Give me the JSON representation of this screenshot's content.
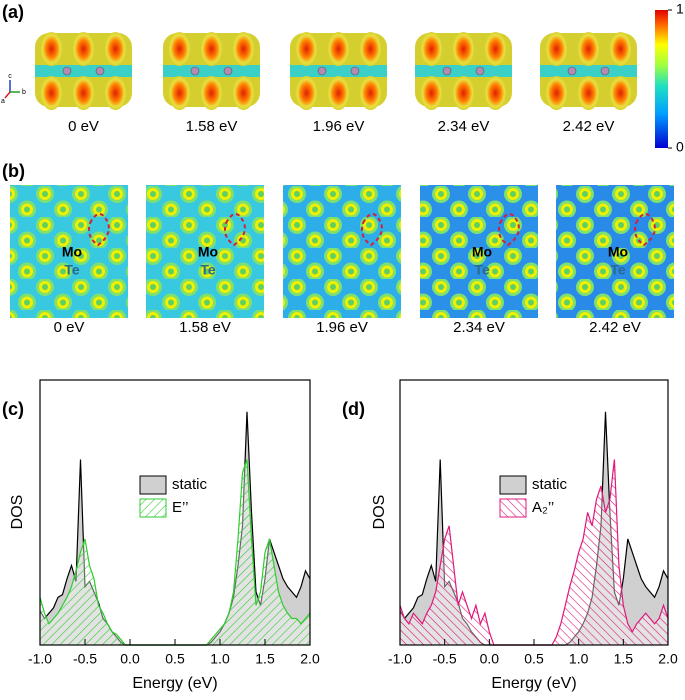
{
  "panel_a": {
    "label": "(a)",
    "captions": [
      "0 eV",
      "1.58 eV",
      "1.96 eV",
      "2.34 eV",
      "2.42 eV"
    ],
    "triad": [
      "c",
      "a",
      "b"
    ],
    "colorbar_ticks": [
      0,
      1
    ]
  },
  "panel_b": {
    "label": "(b)",
    "captions": [
      "0 eV",
      "1.58 eV",
      "1.96 eV",
      "2.34 eV",
      "2.42 eV"
    ],
    "atoms": [
      "Mo",
      "Te"
    ]
  },
  "chart_data": [
    {
      "type": "area",
      "panel_label": "(c)",
      "xlabel": "Energy (eV)",
      "ylabel": "DOS",
      "x": [
        -1,
        -0.95,
        -0.9,
        -0.85,
        -0.8,
        -0.75,
        -0.7,
        -0.65,
        -0.6,
        -0.55,
        -0.5,
        -0.45,
        -0.4,
        -0.35,
        -0.3,
        -0.25,
        -0.2,
        -0.15,
        -0.1,
        -0.05,
        0,
        0.05,
        0.1,
        0.15,
        0.2,
        0.25,
        0.3,
        0.35,
        0.4,
        0.45,
        0.5,
        0.55,
        0.6,
        0.65,
        0.7,
        0.75,
        0.8,
        0.85,
        0.9,
        0.95,
        1,
        1.05,
        1.1,
        1.15,
        1.2,
        1.25,
        1.3,
        1.35,
        1.4,
        1.45,
        1.5,
        1.55,
        1.6,
        1.65,
        1.7,
        1.75,
        1.8,
        1.85,
        1.9,
        1.95,
        2
      ],
      "series": [
        {
          "name": "static",
          "color": "#000000",
          "fill": "#d0d0d0",
          "values": [
            13,
            10,
            12,
            14,
            18,
            19,
            25,
            30,
            24,
            70,
            22,
            24,
            20,
            16,
            10,
            8,
            5,
            3,
            1,
            0,
            0,
            0,
            0,
            0,
            0,
            0,
            0,
            0,
            0,
            0,
            0,
            0,
            0,
            0,
            0,
            0,
            0,
            0,
            1,
            3,
            5,
            8,
            12,
            18,
            30,
            45,
            88,
            50,
            20,
            15,
            25,
            40,
            35,
            30,
            25,
            22,
            20,
            18,
            22,
            28,
            25
          ]
        },
        {
          "name": "E’’",
          "color": "#2fcc2f",
          "pattern": "hatch",
          "values": [
            18,
            12,
            8,
            10,
            12,
            15,
            18,
            22,
            28,
            35,
            40,
            30,
            25,
            15,
            12,
            8,
            5,
            4,
            2,
            0,
            0,
            0,
            0,
            0,
            0,
            0,
            0,
            0,
            0,
            0,
            0,
            0,
            0,
            0,
            0,
            0,
            0,
            0,
            2,
            4,
            6,
            8,
            12,
            20,
            40,
            65,
            70,
            40,
            15,
            20,
            35,
            40,
            30,
            20,
            15,
            12,
            10,
            10,
            8,
            10,
            12
          ]
        }
      ],
      "xlim": [
        -1,
        2
      ],
      "ylim": [
        0,
        100
      ],
      "xticks": [
        {
          "value": -1,
          "label": "-1.0"
        },
        -0.5,
        {
          "value": 0,
          "label": "0.0"
        },
        0.5,
        {
          "value": 1,
          "label": "1.0"
        },
        1.5,
        {
          "value": 2,
          "label": "2.0"
        }
      ]
    },
    {
      "type": "area",
      "panel_label": "(d)",
      "xlabel": "Energy (eV)",
      "ylabel": "DOS",
      "x": [
        -1,
        -0.95,
        -0.9,
        -0.85,
        -0.8,
        -0.75,
        -0.7,
        -0.65,
        -0.6,
        -0.55,
        -0.5,
        -0.45,
        -0.4,
        -0.35,
        -0.3,
        -0.25,
        -0.2,
        -0.15,
        -0.1,
        -0.05,
        0,
        0.05,
        0.1,
        0.15,
        0.2,
        0.25,
        0.3,
        0.35,
        0.4,
        0.45,
        0.5,
        0.55,
        0.6,
        0.65,
        0.7,
        0.75,
        0.8,
        0.85,
        0.9,
        0.95,
        1,
        1.05,
        1.1,
        1.15,
        1.2,
        1.25,
        1.3,
        1.35,
        1.4,
        1.45,
        1.5,
        1.55,
        1.6,
        1.65,
        1.7,
        1.75,
        1.8,
        1.85,
        1.9,
        1.95,
        2
      ],
      "series": [
        {
          "name": "static",
          "color": "#000000",
          "fill": "#d0d0d0",
          "values": [
            13,
            10,
            12,
            14,
            18,
            19,
            25,
            30,
            24,
            70,
            22,
            24,
            20,
            16,
            10,
            8,
            5,
            3,
            1,
            0,
            0,
            0,
            0,
            0,
            0,
            0,
            0,
            0,
            0,
            0,
            0,
            0,
            0,
            0,
            0,
            0,
            0,
            0,
            1,
            3,
            5,
            8,
            12,
            18,
            30,
            45,
            88,
            50,
            20,
            15,
            25,
            40,
            35,
            30,
            25,
            22,
            20,
            18,
            22,
            28,
            25
          ]
        },
        {
          "name": "A₂’’",
          "color": "#e0197c",
          "pattern": "hatch",
          "values": [
            15,
            10,
            8,
            12,
            10,
            8,
            12,
            15,
            20,
            30,
            40,
            45,
            30,
            15,
            20,
            15,
            10,
            15,
            8,
            12,
            5,
            0,
            0,
            0,
            0,
            0,
            0,
            0,
            0,
            0,
            0,
            0,
            0,
            0,
            0,
            3,
            8,
            15,
            22,
            28,
            35,
            40,
            50,
            45,
            55,
            60,
            50,
            55,
            70,
            30,
            15,
            8,
            5,
            8,
            10,
            12,
            10,
            8,
            10,
            15,
            10
          ]
        }
      ],
      "xlim": [
        -1,
        2
      ],
      "ylim": [
        0,
        100
      ],
      "xticks": [
        {
          "value": -1,
          "label": "-1.0"
        },
        -0.5,
        {
          "value": 0,
          "label": "0.0"
        },
        0.5,
        {
          "value": 1,
          "label": "1.0"
        },
        1.5,
        {
          "value": 2,
          "label": "2.0"
        }
      ]
    }
  ]
}
